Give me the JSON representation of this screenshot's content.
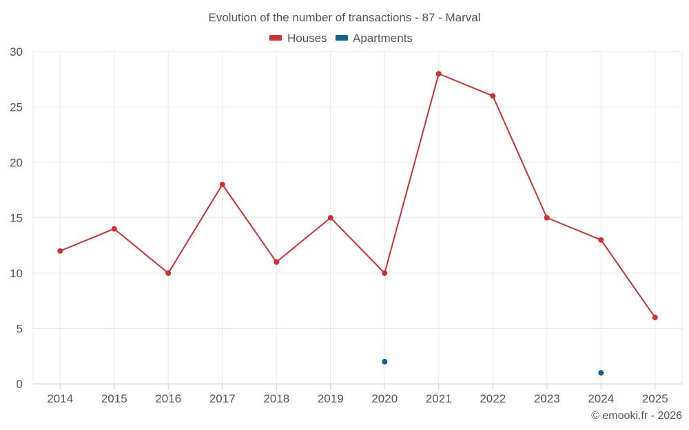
{
  "chart_data": {
    "type": "line",
    "title": "Evolution of the number of transactions - 87 - Marval",
    "categories": [
      "2014",
      "2015",
      "2016",
      "2017",
      "2018",
      "2019",
      "2020",
      "2021",
      "2022",
      "2023",
      "2024",
      "2025"
    ],
    "series": [
      {
        "name": "Houses",
        "color": "#d32f2f",
        "values": [
          12,
          14,
          10,
          18,
          11,
          15,
          10,
          28,
          26,
          15,
          13,
          6
        ]
      },
      {
        "name": "Apartments",
        "color": "#0d6299",
        "values": [
          null,
          null,
          null,
          null,
          null,
          null,
          2,
          null,
          null,
          null,
          1,
          null
        ]
      }
    ],
    "ylim": [
      0,
      30
    ],
    "yticks": [
      "0",
      "5",
      "10",
      "15",
      "20",
      "25",
      "30"
    ],
    "xlabel": "",
    "ylabel": "",
    "grid": true,
    "legend": "top-center"
  },
  "credit": "© emooki.fr - 2026"
}
